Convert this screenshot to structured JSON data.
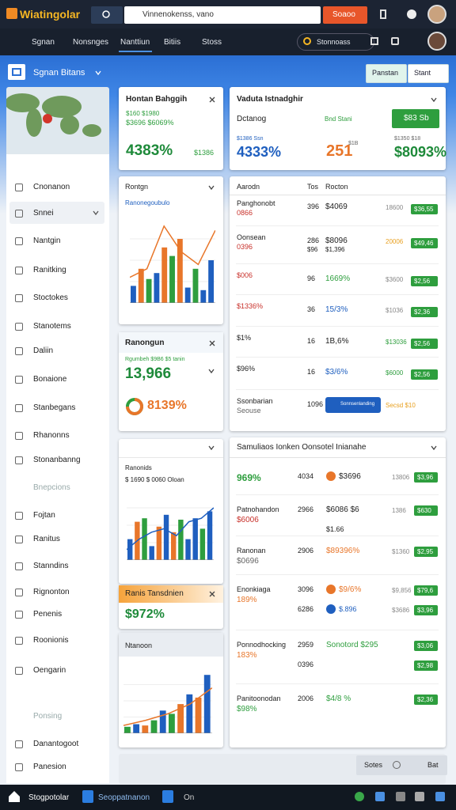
{
  "topbar": {
    "logo": "Wiatingolar",
    "search": "Vinnenokenss, vano",
    "search_button": "Soaoo"
  },
  "nav": {
    "items": [
      "Sgnan",
      "Nonsnges",
      "Nanttiun",
      "Bitiis",
      "Stoss"
    ],
    "active": 2,
    "pill": "Stonnoass"
  },
  "toolbar": {
    "title": "Sgnan Bitans",
    "buttons": [
      "Panstan",
      "Stant"
    ]
  },
  "sidebar": {
    "items": [
      "Cnonanon",
      "Snnei",
      "Nantgin",
      "Ranitking",
      "Stoctokes",
      "Stanotems",
      "Daliin",
      "Bonaione",
      "Stanbegans",
      "Rhanonns",
      "Stonanbanng",
      "Bnepcions",
      "Fojtan",
      "Ranitus",
      "Stanndins",
      "Rignonton",
      "Penenis",
      "Roonionis",
      "Oengarin",
      "Ponsing",
      "Danantogoot",
      "Panesion"
    ],
    "active": 1
  },
  "cards": {
    "kpi": {
      "title": "Hontan Bahggih",
      "line1": "$160 $1980",
      "line2": "$3696 $6069%",
      "value": "4383%",
      "note": "$1386"
    },
    "trend": {
      "title": "Rontgn",
      "subtitle": "Ranonegoubulo"
    },
    "summary": {
      "title": "Ranongun",
      "subtitle": "Rgumbeh $9B6 $5 tanin",
      "value": "13,966",
      "percent": "8139%"
    },
    "growth": {
      "subtitle": "Ranonids",
      "line": "$ 1690 $ 0060 Oloan"
    },
    "highlight": {
      "title": "Ranis Tansdnien",
      "value": "$972%"
    },
    "mini": {
      "title": "Ntanoon"
    },
    "overview": {
      "title": "Vaduta Istnadghir",
      "label": "Dctanog",
      "status": "Bnd Stani",
      "button": "$83 Sb",
      "sub1": "$1386 Ssn",
      "value1": "4333%",
      "value2": "251",
      "value2_note": "$1B",
      "sub3": "$1350 $18",
      "value3": "$8093%"
    }
  },
  "table": {
    "header": [
      "Aarodn",
      "Tos",
      "Rocton"
    ],
    "rows": [
      {
        "name": "Panghonobt",
        "sub": "0866",
        "sub_color": "#c8302a",
        "qty": "396",
        "amount": "$4069",
        "note": "18600",
        "badge": "$36,55"
      },
      {
        "name": "Oonsean",
        "sub": "0396",
        "sub_color": "#c8302a",
        "qty": "286",
        "qty2": "$96",
        "amount": "$8096",
        "amount2": "$1,396",
        "note": "20006",
        "note_color": "#e8a020",
        "badge": "$49,46"
      },
      {
        "name": "$006",
        "name_color": "#c8302a",
        "qty": "96",
        "amount": "1669%",
        "amount_color": "#2e9e3e",
        "note": "$3600",
        "badge": "$2,56"
      },
      {
        "name": "$1336%",
        "name_color": "#c8302a",
        "qty": "36",
        "amount": "15/3%",
        "amount_color": "#1f5fbf",
        "note": "$1036",
        "badge": "$2,36"
      },
      {
        "name": "$1%",
        "qty": "16",
        "amount": "1B,6%",
        "note": "$13036",
        "note_color": "#2e9e3e",
        "badge": "$2,56"
      },
      {
        "name": "$96%",
        "qty": "16",
        "amount": "$3/6%",
        "amount_color": "#1f5fbf",
        "note": "$6000",
        "note_color": "#2e9e3e",
        "badge": "$2,56"
      },
      {
        "name": "Ssonbarian",
        "sub": "Seouse",
        "qty": "1096",
        "button": "Sonnsenlanding",
        "note": "Secsd $10",
        "note_color": "#e8a020"
      }
    ]
  },
  "list": {
    "title": "Samuliaos Ionken Oonsotel Inianahe",
    "rows": [
      {
        "name": "969%",
        "name_color": "#2e9e3e",
        "qty": "4034",
        "amount": "$3696",
        "icon": "#e8762a",
        "note": "13806",
        "badge": "$3,96"
      },
      {
        "name": "Patnohandon",
        "sub": "$6006",
        "sub_color": "#c8302a",
        "qty": "2966",
        "amount": "$6086 $6",
        "amount2": "$1.66",
        "note": "1386",
        "badge": "$630"
      },
      {
        "name": "Ranonan",
        "sub": "$0696",
        "qty": "2906",
        "amount": "$89396%",
        "amount_color": "#e8762a",
        "note": "$1360",
        "badge": "$2,95"
      },
      {
        "name": "Enonkiaga",
        "sub": "189%",
        "sub_color": "#e8762a",
        "qty": "3096",
        "qty2": "6286",
        "amount": "$9/6%",
        "amount_color": "#e8762a",
        "icon": "#e8762a",
        "amount2": "$.896",
        "amount2_icon": "#1f5fbf",
        "note": "$9,856",
        "note2": "$3686",
        "badge": "$79,6",
        "badge2": "$3,96"
      },
      {
        "name": "Ponnodhocking",
        "sub": "183%",
        "sub_color": "#e8762a",
        "qty": "2959",
        "qty2": "0396",
        "amount": "Sonotord $295",
        "amount_color": "#2e9e3e",
        "badge": "$3,06",
        "badge2": "$2,98"
      },
      {
        "name": "Panitoonodan",
        "sub": "$98%",
        "sub_color": "#2e9e3e",
        "qty": "2006",
        "amount": "$4/8 %",
        "amount_color": "#2e9e3e",
        "badge": "$2,36"
      }
    ]
  },
  "pager": [
    "Sotes",
    "Bat"
  ],
  "taskbar": [
    "Stogpotolar",
    "Seoppatnanon",
    "On"
  ],
  "charts": [
    {
      "type": "bar",
      "ylim": [
        0,
        100
      ],
      "values": [
        20,
        40,
        28,
        35,
        65,
        55,
        75,
        18,
        40,
        15,
        50
      ],
      "colors": [
        "#1f5fbf",
        "#e8762a",
        "#2e9e3e",
        "#1f5fbf",
        "#e8762a",
        "#2e9e3e",
        "#e8762a",
        "#1f5fbf",
        "#2e9e3e",
        "#1f5fbf",
        "#1f5fbf"
      ],
      "line": [
        30,
        40,
        90,
        60,
        45,
        85
      ],
      "line_color": "#e8762a"
    },
    {
      "type": "bar",
      "ylim": [
        0,
        100
      ],
      "values": [
        30,
        55,
        60,
        20,
        48,
        65,
        40,
        58,
        30,
        60,
        45,
        70
      ],
      "colors": [
        "#1f5fbf",
        "#e8762a",
        "#2e9e3e",
        "#1f5fbf",
        "#e8762a",
        "#1f5fbf",
        "#e8762a",
        "#2e9e3e",
        "#1f5fbf",
        "#1f5fbf",
        "#2e9e3e",
        "#1f5fbf"
      ],
      "line": [
        15,
        30,
        40,
        45,
        35,
        55,
        60,
        75
      ],
      "line_color": "#1f5fbf"
    },
    {
      "type": "bar",
      "ylim": [
        0,
        100
      ],
      "values": [
        10,
        14,
        12,
        20,
        35,
        30,
        45,
        60,
        55,
        90
      ],
      "colors": [
        "#2e9e3e",
        "#1f5fbf",
        "#e8762a",
        "#2e9e3e",
        "#1f5fbf",
        "#2e9e3e",
        "#e8762a",
        "#1f5fbf",
        "#e8762a",
        "#1f5fbf"
      ],
      "line": [
        12,
        20,
        30,
        45,
        70
      ],
      "line_color": "#e8762a"
    }
  ]
}
